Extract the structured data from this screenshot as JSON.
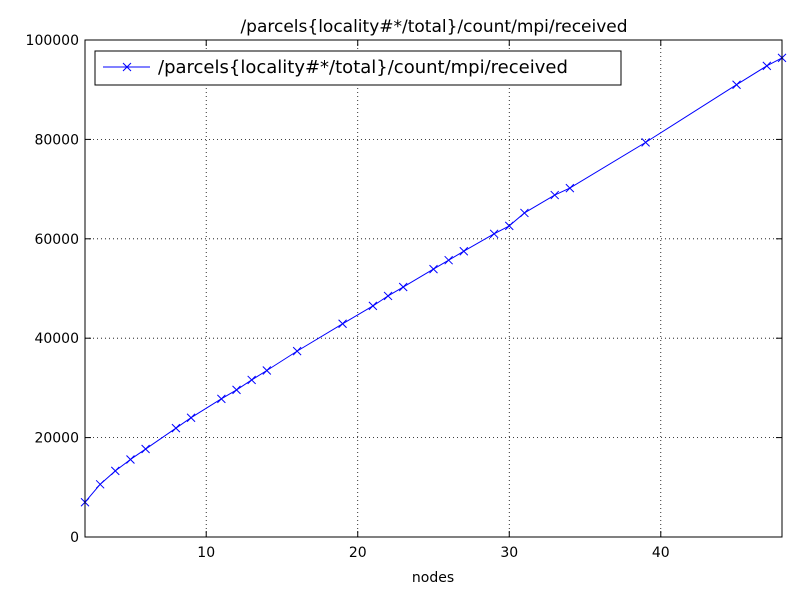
{
  "chart_data": {
    "type": "line",
    "title": "/parcels{locality#*/total}/count/mpi/received",
    "xlabel": "nodes",
    "ylabel": "",
    "xlim": [
      2,
      48
    ],
    "ylim": [
      0,
      100000
    ],
    "xticks": [
      10,
      20,
      30,
      40
    ],
    "yticks": [
      0,
      20000,
      40000,
      60000,
      80000,
      100000
    ],
    "grid": true,
    "legend_position": "top-left",
    "series": [
      {
        "name": "/parcels{locality#*/total}/count/mpi/received",
        "color": "#0000ff",
        "marker": "x",
        "x": [
          2,
          3,
          4,
          5,
          6,
          8,
          9,
          11,
          12,
          13,
          14,
          16,
          19,
          21,
          22,
          23,
          25,
          26,
          27,
          29,
          30,
          31,
          33,
          34,
          39,
          45,
          47,
          48
        ],
        "y": [
          7000,
          10600,
          13300,
          15600,
          17700,
          21900,
          24000,
          27800,
          29600,
          31600,
          33500,
          37400,
          42900,
          46500,
          48500,
          50300,
          53900,
          55700,
          57500,
          61000,
          62600,
          65200,
          68800,
          70200,
          79400,
          91000,
          94800,
          96400
        ]
      }
    ]
  }
}
